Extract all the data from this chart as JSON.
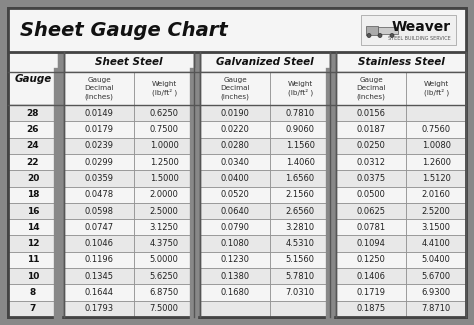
{
  "title": "Sheet Gauge Chart",
  "outer_bg": "#888888",
  "table_bg": "#888888",
  "header_section_bg": "#f5f5f5",
  "row_colors": [
    "#e8e8e8",
    "#f5f5f5"
  ],
  "gauges": [
    28,
    26,
    24,
    22,
    20,
    18,
    16,
    14,
    12,
    11,
    10,
    8,
    7
  ],
  "sheet_steel": [
    [
      "0.0149",
      "0.6250"
    ],
    [
      "0.0179",
      "0.7500"
    ],
    [
      "0.0239",
      "1.0000"
    ],
    [
      "0.0299",
      "1.2500"
    ],
    [
      "0.0359",
      "1.5000"
    ],
    [
      "0.0478",
      "2.0000"
    ],
    [
      "0.0598",
      "2.5000"
    ],
    [
      "0.0747",
      "3.1250"
    ],
    [
      "0.1046",
      "4.3750"
    ],
    [
      "0.1196",
      "5.0000"
    ],
    [
      "0.1345",
      "5.6250"
    ],
    [
      "0.1644",
      "6.8750"
    ],
    [
      "0.1793",
      "7.5000"
    ]
  ],
  "galvanized_steel": [
    [
      "0.0190",
      "0.7810"
    ],
    [
      "0.0220",
      "0.9060"
    ],
    [
      "0.0280",
      "1.1560"
    ],
    [
      "0.0340",
      "1.4060"
    ],
    [
      "0.0400",
      "1.6560"
    ],
    [
      "0.0520",
      "2.1560"
    ],
    [
      "0.0640",
      "2.6560"
    ],
    [
      "0.0790",
      "3.2810"
    ],
    [
      "0.1080",
      "4.5310"
    ],
    [
      "0.1230",
      "5.1560"
    ],
    [
      "0.1380",
      "5.7810"
    ],
    [
      "0.1680",
      "7.0310"
    ],
    [
      "",
      ""
    ]
  ],
  "stainless_steel": [
    [
      "0.0156",
      ""
    ],
    [
      "0.0187",
      "0.7560"
    ],
    [
      "0.0250",
      "1.0080"
    ],
    [
      "0.0312",
      "1.2600"
    ],
    [
      "0.0375",
      "1.5120"
    ],
    [
      "0.0500",
      "2.0160"
    ],
    [
      "0.0625",
      "2.5200"
    ],
    [
      "0.0781",
      "3.1500"
    ],
    [
      "0.1094",
      "4.4100"
    ],
    [
      "0.1250",
      "5.0400"
    ],
    [
      "0.1406",
      "5.6700"
    ],
    [
      "0.1719",
      "6.9300"
    ],
    [
      "0.1875",
      "7.8710"
    ]
  ],
  "section_labels": [
    "Sheet Steel",
    "Galvanized Steel",
    "Stainless Steel"
  ],
  "sub_col_labels": [
    "Gauge\nDecimal\n(inches)",
    "Weight\n(lb/ft² )",
    "Gauge\nDecimal\n(inches)",
    "Weight\n(lb/ft² )",
    "Gauge\nDecimal\n(inches)",
    "Weight\n(lb/ft² )"
  ],
  "gauge_label": "Gauge"
}
